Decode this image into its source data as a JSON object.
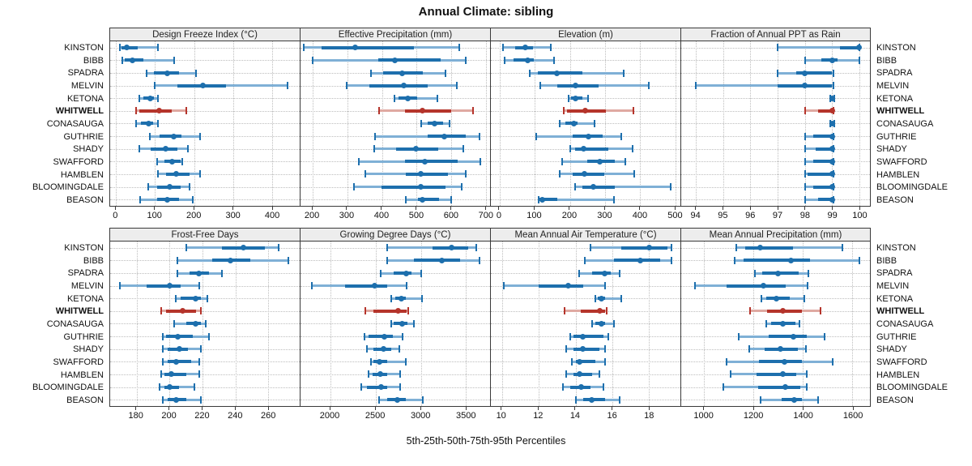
{
  "chart_data": {
    "type": "scatter",
    "subtype": "percentile-dot-whisker (lattice dotplot, 2x4 panel grid)",
    "title": "Annual Climate: sibling",
    "caption": "5th-25th-50th-75th-95th Percentiles",
    "legend_position": "none",
    "grid": "dotted",
    "layout": {
      "rows": 2,
      "cols": 4
    },
    "percentile_labels": [
      "5th",
      "25th",
      "50th",
      "75th",
      "95th"
    ],
    "highlight_site": "WHITWELL",
    "sites": [
      "KINSTON",
      "BIBB",
      "SPADRA",
      "MELVIN",
      "KETONA",
      "WHITWELL",
      "CONASAUGA",
      "GUTHRIE",
      "SHADY",
      "SWAFFORD",
      "HAMBLEN",
      "BLOOMINGDALE",
      "BEASON"
    ],
    "panels": [
      {
        "title": "Design Freeze Index (°C)",
        "xlim": [
          -15,
          470
        ],
        "ticks": [
          0,
          100,
          200,
          300,
          400
        ],
        "values": [
          [
            9,
            14,
            27,
            55,
            107
          ],
          [
            16,
            23,
            41,
            69,
            149
          ],
          [
            79,
            96,
            132,
            162,
            205
          ],
          [
            100,
            158,
            222,
            282,
            438
          ],
          [
            60,
            70,
            87,
            96,
            108
          ],
          [
            52,
            60,
            110,
            143,
            180
          ],
          [
            52,
            63,
            84,
            94,
            108
          ],
          [
            87,
            112,
            147,
            168,
            215
          ],
          [
            60,
            88,
            127,
            158,
            184
          ],
          [
            105,
            124,
            144,
            165,
            170
          ],
          [
            108,
            127,
            153,
            189,
            216
          ],
          [
            82,
            106,
            137,
            165,
            189
          ],
          [
            62,
            106,
            132,
            161,
            197
          ]
        ]
      },
      {
        "title": "Effective Precipitation (mm)",
        "xlim": [
          165,
          712
        ],
        "ticks": [
          200,
          300,
          400,
          500,
          600,
          700
        ],
        "values": [
          [
            175,
            225,
            323,
            493,
            623
          ],
          [
            200,
            390,
            437,
            570,
            642
          ],
          [
            368,
            404,
            458,
            517,
            584
          ],
          [
            298,
            364,
            462,
            533,
            615
          ],
          [
            435,
            447,
            474,
            501,
            560
          ],
          [
            392,
            466,
            517,
            599,
            662
          ],
          [
            513,
            533,
            552,
            576,
            594
          ],
          [
            380,
            532,
            579,
            641,
            682
          ],
          [
            377,
            442,
            497,
            563,
            635
          ],
          [
            333,
            466,
            524,
            618,
            684
          ],
          [
            352,
            470,
            512,
            591,
            641
          ],
          [
            320,
            399,
            512,
            583,
            630
          ],
          [
            468,
            505,
            517,
            565,
            600
          ]
        ]
      },
      {
        "title": "Elevation (m)",
        "xlim": [
          -25,
          515
        ],
        "ticks": [
          0,
          100,
          200,
          300,
          400,
          500
        ],
        "values": [
          [
            10,
            45,
            72,
            95,
            145
          ],
          [
            15,
            40,
            80,
            97,
            156
          ],
          [
            86,
            109,
            164,
            235,
            354
          ],
          [
            115,
            164,
            215,
            282,
            424
          ],
          [
            196,
            204,
            217,
            235,
            253
          ],
          [
            182,
            192,
            244,
            302,
            382
          ],
          [
            172,
            188,
            211,
            223,
            270
          ],
          [
            104,
            207,
            253,
            294,
            347
          ],
          [
            202,
            216,
            239,
            310,
            378
          ],
          [
            179,
            249,
            286,
            327,
            358
          ],
          [
            171,
            207,
            241,
            297,
            383
          ],
          [
            216,
            235,
            268,
            327,
            487
          ],
          [
            112,
            114,
            121,
            164,
            325
          ]
        ]
      },
      {
        "title": "Fraction of Annual PPT as Rain",
        "xlim": [
          93.45,
          100.4
        ],
        "ticks": [
          94,
          95,
          96,
          97,
          98,
          99,
          100
        ],
        "values": [
          [
            97,
            99.3,
            100,
            100,
            100
          ],
          [
            98,
            98.6,
            99,
            99.2,
            100
          ],
          [
            97,
            97.7,
            98,
            99,
            99.05
          ],
          [
            94,
            97,
            98,
            99,
            99.05
          ],
          [
            98.95,
            99,
            99,
            99,
            99.1
          ],
          [
            98,
            98.5,
            99,
            99,
            99.05
          ],
          [
            98.95,
            99,
            99,
            99,
            99.1
          ],
          [
            98,
            98.3,
            99,
            99,
            99.05
          ],
          [
            98,
            98.4,
            99,
            99,
            99.05
          ],
          [
            98,
            98.3,
            99,
            99,
            99.05
          ],
          [
            98,
            98.1,
            99,
            99,
            99.05
          ],
          [
            98,
            98.3,
            99,
            99,
            99.05
          ],
          [
            98,
            98.5,
            99,
            99,
            99.05
          ]
        ]
      },
      {
        "title": "Frost-Free Days",
        "xlim": [
          164,
          279
        ],
        "ticks": [
          180,
          200,
          220,
          240,
          260
        ],
        "values": [
          [
            210,
            232,
            245,
            258,
            266
          ],
          [
            205,
            226,
            237,
            249,
            272
          ],
          [
            205,
            212,
            218,
            224,
            232
          ],
          [
            170,
            186,
            200,
            207,
            218
          ],
          [
            204,
            207,
            216,
            219,
            223
          ],
          [
            195,
            198,
            208,
            216,
            219
          ],
          [
            203,
            210,
            216,
            219,
            222
          ],
          [
            196,
            198,
            205,
            214,
            224
          ],
          [
            196,
            199,
            206,
            211,
            219
          ],
          [
            196,
            199,
            204,
            213,
            218
          ],
          [
            195,
            197,
            201,
            210,
            218
          ],
          [
            194,
            197,
            200,
            206,
            215
          ],
          [
            196,
            199,
            204,
            210,
            219
          ]
        ]
      },
      {
        "title": "Growing Degree Days (°C)",
        "xlim": [
          1670,
          3765
        ],
        "ticks": [
          2000,
          2500,
          3000,
          3500
        ],
        "values": [
          [
            2630,
            3130,
            3340,
            3520,
            3610
          ],
          [
            2630,
            2925,
            3230,
            3430,
            3645
          ],
          [
            2555,
            2700,
            2835,
            2895,
            3000
          ],
          [
            1795,
            2165,
            2490,
            2630,
            2845
          ],
          [
            2675,
            2715,
            2785,
            2835,
            3010
          ],
          [
            2390,
            2480,
            2750,
            2840,
            2865
          ],
          [
            2675,
            2700,
            2790,
            2850,
            2925
          ],
          [
            2375,
            2420,
            2600,
            2690,
            2800
          ],
          [
            2405,
            2480,
            2590,
            2675,
            2760
          ],
          [
            2450,
            2480,
            2545,
            2630,
            2830
          ],
          [
            2420,
            2465,
            2555,
            2630,
            2770
          ],
          [
            2345,
            2405,
            2560,
            2630,
            2775
          ],
          [
            2540,
            2630,
            2740,
            2835,
            3020
          ]
        ]
      },
      {
        "title": "Mean Annual Air Temperature (°C)",
        "xlim": [
          9.4,
          19.7
        ],
        "ticks": [
          10,
          12,
          14,
          16,
          18
        ],
        "values": [
          [
            14.8,
            16.5,
            18.0,
            19.0,
            19.2
          ],
          [
            14.5,
            16.1,
            17.5,
            18.6,
            19.2
          ],
          [
            14.2,
            14.9,
            15.6,
            15.9,
            16.4
          ],
          [
            10.1,
            12.0,
            13.6,
            14.4,
            15.6
          ],
          [
            15.1,
            15.2,
            15.4,
            15.6,
            16.5
          ],
          [
            13.4,
            14.3,
            15.3,
            15.6,
            15.7
          ],
          [
            14.9,
            15.1,
            15.4,
            15.6,
            16.1
          ],
          [
            13.7,
            13.9,
            14.4,
            15.5,
            15.8
          ],
          [
            13.5,
            13.9,
            14.4,
            15.3,
            15.6
          ],
          [
            13.8,
            14.0,
            14.2,
            15.1,
            15.6
          ],
          [
            13.5,
            13.9,
            14.2,
            14.9,
            15.3
          ],
          [
            13.3,
            13.7,
            14.3,
            14.8,
            15.5
          ],
          [
            14.0,
            14.4,
            14.9,
            15.6,
            16.4
          ]
        ]
      },
      {
        "title": "Mean Annual Precipitation (mm)",
        "xlim": [
          907,
          1671
        ],
        "ticks": [
          1000,
          1200,
          1400,
          1600
        ],
        "values": [
          [
            1130,
            1165,
            1227,
            1360,
            1560
          ],
          [
            1124,
            1160,
            1350,
            1430,
            1628
          ],
          [
            1204,
            1234,
            1298,
            1383,
            1423
          ],
          [
            962,
            1090,
            1240,
            1330,
            1420
          ],
          [
            1233,
            1250,
            1291,
            1346,
            1405
          ],
          [
            1185,
            1255,
            1320,
            1395,
            1470
          ],
          [
            1250,
            1272,
            1317,
            1368,
            1386
          ],
          [
            1140,
            1260,
            1360,
            1415,
            1487
          ],
          [
            1183,
            1245,
            1310,
            1378,
            1413
          ],
          [
            1090,
            1223,
            1324,
            1394,
            1521
          ],
          [
            1106,
            1213,
            1320,
            1372,
            1415
          ],
          [
            1078,
            1218,
            1327,
            1388,
            1415
          ],
          [
            1229,
            1314,
            1364,
            1394,
            1460
          ]
        ]
      }
    ],
    "colors": {
      "blue_dark": "#1d6fad",
      "blue_light": "#7fb0d6",
      "red_dark": "#b5342b",
      "red_light": "#dfa9a2",
      "grid": "#bdbdbd",
      "strip_bg": "#ededed",
      "border": "#3a3a3a"
    }
  }
}
